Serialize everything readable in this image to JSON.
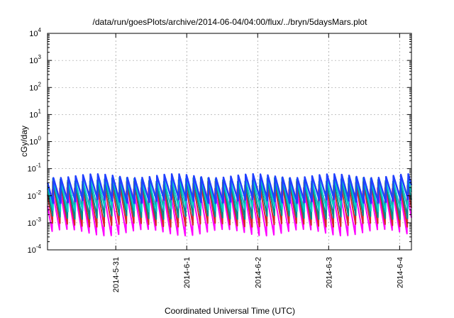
{
  "chart_data": {
    "type": "area",
    "title": "/data/run/goesPlots/archive/2014-06-04/04:00/flux/../bryn/5daysMars.plot",
    "xlabel": "Coordinated Universal Time (UTC)",
    "ylabel": "cGy/day",
    "y_scale": "log",
    "ylim": [
      0.0001,
      10000
    ],
    "xlim": [
      "2014-05-30T00:55",
      "2014-06-04T04:00"
    ],
    "grid": true,
    "x_ticks": [
      {
        "date": "2014-05-31T00:00",
        "label": "2014-5-31"
      },
      {
        "date": "2014-06-01T00:00",
        "label": "2014-6-1"
      },
      {
        "date": "2014-06-02T00:00",
        "label": "2014-6-2"
      },
      {
        "date": "2014-06-03T00:00",
        "label": "2014-6-3"
      },
      {
        "date": "2014-06-04T00:00",
        "label": "2014-6-4"
      }
    ],
    "y_ticks": [
      {
        "value": 0.0001,
        "base": "10",
        "exp": "-4"
      },
      {
        "value": 0.001,
        "base": "10",
        "exp": "-3"
      },
      {
        "value": 0.01,
        "base": "10",
        "exp": "-2"
      },
      {
        "value": 0.1,
        "base": "10",
        "exp": "-1"
      },
      {
        "value": 1,
        "base": "10",
        "exp": "0"
      },
      {
        "value": 10,
        "base": "10",
        "exp": "1"
      },
      {
        "value": 100,
        "base": "10",
        "exp": "2"
      },
      {
        "value": 1000,
        "base": "10",
        "exp": "3"
      },
      {
        "value": 10000,
        "base": "10",
        "exp": "4"
      }
    ],
    "sawtooth_period_hours": 2.5,
    "series": [
      {
        "color": "#ff00ff",
        "peak": 0.015,
        "trough": 0.0004
      },
      {
        "color": "#d62728",
        "peak": 0.03,
        "trough": 0.0008
      },
      {
        "color": "#008b8b",
        "peak": 0.04,
        "trough": 0.0015
      },
      {
        "color": "#00cccc",
        "peak": 0.045,
        "trough": 0.003
      },
      {
        "color": "#2040ff",
        "peak": 0.055,
        "trough": 0.006
      }
    ]
  }
}
